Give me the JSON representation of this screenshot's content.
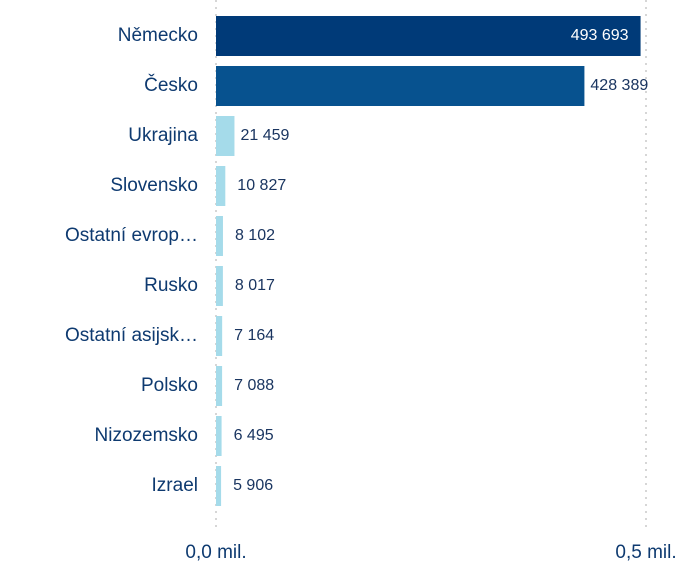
{
  "chart_data": {
    "type": "bar",
    "orientation": "horizontal",
    "categories": [
      "Německo",
      "Česko",
      "Ukrajina",
      "Slovensko",
      "Ostatní evrop…",
      "Rusko",
      "Ostatní asijsk…",
      "Polsko",
      "Nizozemsko",
      "Izrael"
    ],
    "values": [
      493693,
      428389,
      21459,
      10827,
      8102,
      8017,
      7164,
      7088,
      6495,
      5906
    ],
    "value_labels": [
      "493 693",
      "428 389",
      "21 459",
      "10 827",
      "8 102",
      "8 017",
      "7 164",
      "7 088",
      "6 495",
      "5 906"
    ],
    "colors": [
      "#003a78",
      "#07528f",
      "#a5dbea",
      "#a5dbea",
      "#a5dbea",
      "#a5dbea",
      "#a5dbea",
      "#a5dbea",
      "#a5dbea",
      "#a5dbea"
    ],
    "xlim": [
      0,
      500000
    ],
    "xticks": [
      {
        "value": 0,
        "label": "0,0 mil."
      },
      {
        "value": 500000,
        "label": "0,5 mil."
      }
    ],
    "grid": true
  }
}
